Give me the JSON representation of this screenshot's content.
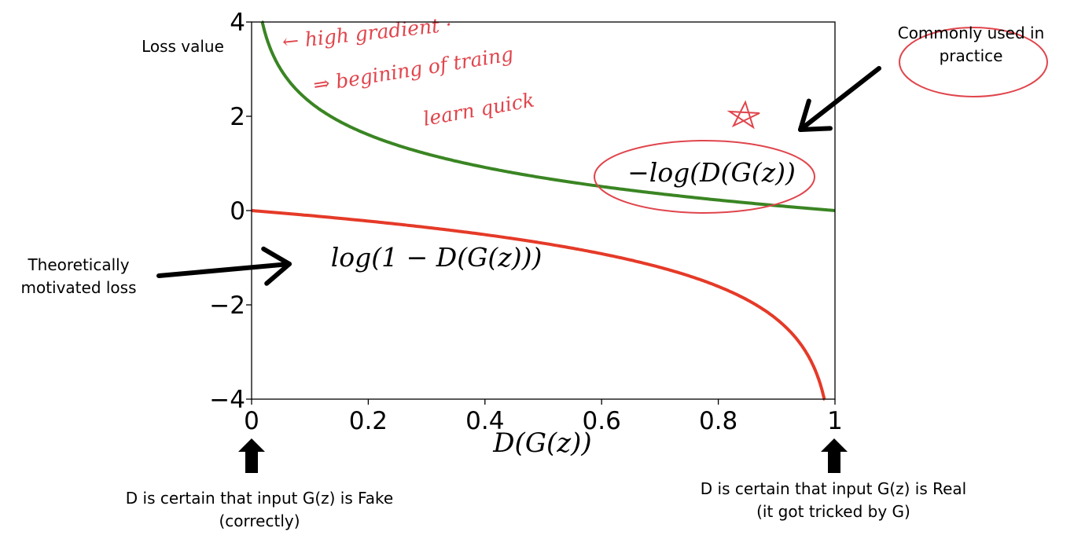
{
  "chart_data": {
    "type": "line",
    "title": "",
    "xlabel": "D(G(z))",
    "ylabel": "Loss value",
    "xlim": [
      0,
      1
    ],
    "ylim": [
      -4,
      4
    ],
    "x_ticks": [
      0,
      0.2,
      0.4,
      0.6,
      0.8,
      1
    ],
    "x_tick_labels": [
      "0",
      "0.2",
      "0.4",
      "0.6",
      "0.8",
      "1"
    ],
    "y_ticks": [
      -4,
      -2,
      0,
      2,
      4
    ],
    "y_tick_labels": [
      "−4",
      "−2",
      "0",
      "2",
      "4"
    ],
    "grid": false,
    "legend": "none",
    "series": [
      {
        "name": "−log(D(G(z))",
        "function": "-log(x)",
        "color": "#3a8523",
        "x": [
          0.018,
          0.03,
          0.05,
          0.08,
          0.1,
          0.15,
          0.2,
          0.3,
          0.4,
          0.5,
          0.6,
          0.7,
          0.8,
          0.9,
          1.0
        ],
        "y": [
          4.0,
          3.51,
          3.0,
          2.53,
          2.3,
          1.9,
          1.61,
          1.2,
          0.92,
          0.69,
          0.51,
          0.36,
          0.22,
          0.11,
          0.0
        ]
      },
      {
        "name": "log(1 − D(G(z)))",
        "function": "log(1-x)",
        "color": "#e53a28",
        "x": [
          0.0,
          0.1,
          0.2,
          0.3,
          0.4,
          0.5,
          0.6,
          0.7,
          0.8,
          0.85,
          0.9,
          0.95,
          0.97,
          0.982
        ],
        "y": [
          0.0,
          -0.11,
          -0.22,
          -0.36,
          -0.51,
          -0.69,
          -0.92,
          -1.2,
          -1.61,
          -1.9,
          -2.3,
          -3.0,
          -3.51,
          -4.0
        ]
      }
    ],
    "colors": {
      "axis": "#000000",
      "annotation_red": "#e0454c",
      "arrow": "#000000"
    }
  },
  "annotations": {
    "y_axis_label": "Loss value",
    "top_right_note": [
      "Commonly used in",
      "practice"
    ],
    "left_note": [
      "Theoretically",
      "motivated loss"
    ],
    "green_curve_label": "−log(D(G(z))",
    "red_curve_label": "log(1 − D(G(z)))",
    "bottom_left_note": [
      "D is certain that input G(z) is Fake",
      "(correctly)"
    ],
    "bottom_right_note": [
      "D is certain that input G(z) is Real",
      "(it got tricked by G)"
    ],
    "handwritten_notes": [
      "← high gradient ·",
      "⇒ begining of traing",
      "learn quick"
    ]
  }
}
